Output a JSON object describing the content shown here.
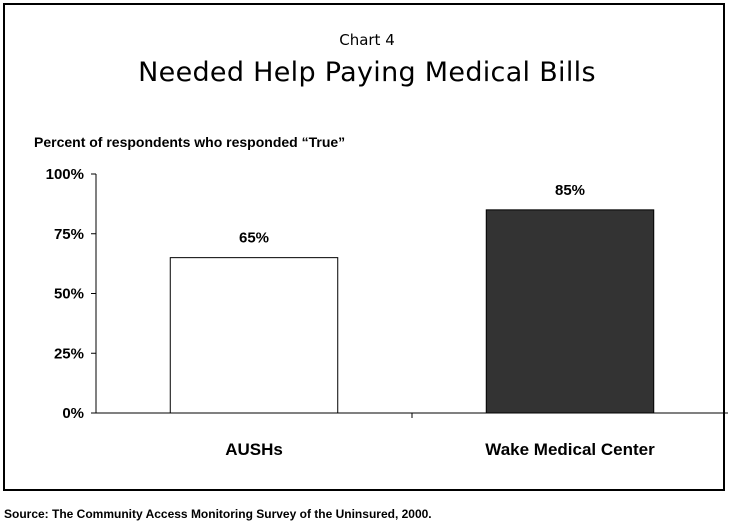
{
  "chart_data": {
    "type": "bar",
    "supertitle": "Chart 4",
    "title": "Needed Help Paying Medical Bills",
    "ylabel": "Percent of respondents who responded “True”",
    "categories": [
      "AUSHs",
      "Wake Medical Center"
    ],
    "values": [
      65,
      85
    ],
    "value_labels": [
      "65%",
      "85%"
    ],
    "bar_colors": [
      "#ffffff",
      "#333333"
    ],
    "yticks": [
      0,
      25,
      50,
      75,
      100
    ],
    "ytick_labels": [
      "0%",
      "25%",
      "50%",
      "75%",
      "100%"
    ],
    "ylim": [
      0,
      100
    ],
    "grid": false,
    "legend": "none"
  },
  "source": "Source: The Community Access Monitoring Survey of the Uninsured, 2000."
}
